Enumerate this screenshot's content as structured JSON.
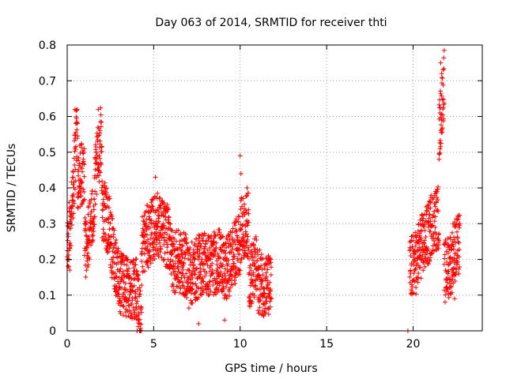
{
  "chart_data": {
    "type": "scatter",
    "title": "Day 063 of 2014, SRMTID for receiver thti",
    "xlabel": "GPS time / hours",
    "ylabel": "SRMTID / TECUs",
    "xlim": [
      0,
      24
    ],
    "ylim": [
      0,
      0.8
    ],
    "xticks": [
      "0",
      "5",
      "10",
      "15",
      "20"
    ],
    "yticks": [
      "0",
      "0.1",
      "0.2",
      "0.3",
      "0.4",
      "0.5",
      "0.6",
      "0.7",
      "0.8"
    ],
    "grid": true,
    "marker": "+",
    "color": "#ff0000",
    "series": [
      {
        "name": "SRMTID",
        "segments": [
          {
            "x": [
              0.0,
              0.3
            ],
            "y": [
              0.23,
              0.35
            ]
          },
          {
            "x": [
              0.3,
              0.6
            ],
            "y": [
              0.35,
              0.6
            ]
          },
          {
            "x": [
              0.6,
              1.0
            ],
            "y": [
              0.42,
              0.45
            ]
          },
          {
            "x": [
              1.0,
              1.6
            ],
            "y": [
              0.22,
              0.35
            ]
          },
          {
            "x": [
              1.6,
              2.0
            ],
            "y": [
              0.42,
              0.56
            ]
          },
          {
            "x": [
              2.0,
              2.5
            ],
            "y": [
              0.35,
              0.28
            ]
          },
          {
            "x": [
              2.5,
              3.0
            ],
            "y": [
              0.25,
              0.15
            ]
          },
          {
            "x": [
              3.0,
              4.0
            ],
            "y": [
              0.13,
              0.12
            ]
          },
          {
            "x": [
              4.0,
              4.3
            ],
            "y": [
              0.08,
              0.05
            ]
          },
          {
            "x": [
              4.3,
              5.2
            ],
            "y": [
              0.24,
              0.3
            ]
          },
          {
            "x": [
              5.2,
              6.0
            ],
            "y": [
              0.3,
              0.25
            ]
          },
          {
            "x": [
              6.0,
              7.0
            ],
            "y": [
              0.2,
              0.18
            ]
          },
          {
            "x": [
              7.0,
              8.0
            ],
            "y": [
              0.15,
              0.2
            ]
          },
          {
            "x": [
              8.0,
              9.0
            ],
            "y": [
              0.18,
              0.2
            ]
          },
          {
            "x": [
              9.0,
              10.0
            ],
            "y": [
              0.15,
              0.25
            ]
          },
          {
            "x": [
              10.0,
              10.5
            ],
            "y": [
              0.28,
              0.3
            ]
          },
          {
            "x": [
              10.5,
              11.0
            ],
            "y": [
              0.15,
              0.18
            ]
          },
          {
            "x": [
              11.0,
              11.8
            ],
            "y": [
              0.14,
              0.12
            ]
          },
          {
            "x": [
              19.7,
              19.7
            ],
            "y": [
              0.0,
              0.0
            ]
          },
          {
            "x": [
              19.8,
              20.3
            ],
            "y": [
              0.17,
              0.2
            ]
          },
          {
            "x": [
              20.3,
              21.0
            ],
            "y": [
              0.22,
              0.28
            ]
          },
          {
            "x": [
              21.0,
              21.5
            ],
            "y": [
              0.3,
              0.32
            ]
          },
          {
            "x": [
              21.5,
              21.8
            ],
            "y": [
              0.55,
              0.7
            ]
          },
          {
            "x": [
              21.8,
              22.3
            ],
            "y": [
              0.16,
              0.2
            ]
          },
          {
            "x": [
              22.3,
              22.7
            ],
            "y": [
              0.22,
              0.24
            ]
          }
        ],
        "highlights": [
          {
            "x": 0.45,
            "y": 0.62
          },
          {
            "x": 0.5,
            "y": 0.58
          },
          {
            "x": 1.8,
            "y": 0.62
          },
          {
            "x": 1.9,
            "y": 0.56
          },
          {
            "x": 5.1,
            "y": 0.43
          },
          {
            "x": 10.0,
            "y": 0.49
          },
          {
            "x": 10.05,
            "y": 0.44
          },
          {
            "x": 10.4,
            "y": 0.4
          },
          {
            "x": 21.6,
            "y": 0.75
          },
          {
            "x": 21.65,
            "y": 0.72
          },
          {
            "x": 21.55,
            "y": 0.61
          },
          {
            "x": 21.5,
            "y": 0.48
          },
          {
            "x": 0.15,
            "y": 0.17
          },
          {
            "x": 4.2,
            "y": 0.02
          },
          {
            "x": 7.6,
            "y": 0.02
          },
          {
            "x": 9.1,
            "y": 0.03
          },
          {
            "x": 22.4,
            "y": 0.09
          }
        ]
      }
    ]
  }
}
